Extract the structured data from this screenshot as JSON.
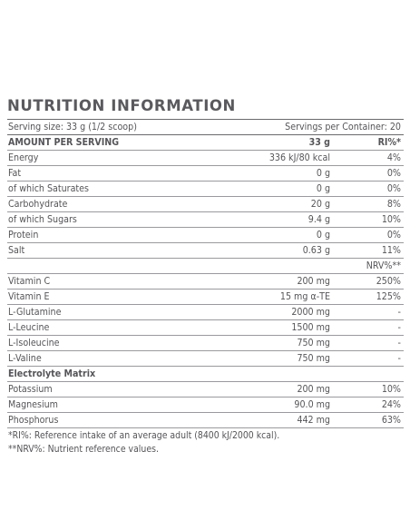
{
  "title": "NUTRITION INFORMATION",
  "serving": {
    "size": "Serving size: 33 g (1/2 scoop)",
    "per_container": "Servings per Container: 20"
  },
  "header": {
    "label": "AMOUNT PER SERVING",
    "amount": "33 g",
    "ri": "RI%*"
  },
  "nutrients": [
    {
      "name": "Energy",
      "amount": "336 kJ/80 kcal",
      "ri": "4%"
    },
    {
      "name": "Fat",
      "amount": "0 g",
      "ri": "0%"
    },
    {
      "name": "of which Saturates",
      "amount": "0 g",
      "ri": "0%"
    },
    {
      "name": "Carbohydrate",
      "amount": "20 g",
      "ri": "8%"
    },
    {
      "name": "of which Sugars",
      "amount": "9.4 g",
      "ri": "10%"
    },
    {
      "name": "Protein",
      "amount": "0 g",
      "ri": "0%"
    },
    {
      "name": "Salt",
      "amount": "0.63 g",
      "ri": "11%"
    }
  ],
  "nrv_header": "NRV%**",
  "vitamins": [
    {
      "name": "Vitamin C",
      "amount": "200 mg",
      "nrv": "250%"
    },
    {
      "name": "Vitamin E",
      "amount": "15 mg α-TE",
      "nrv": "125%"
    },
    {
      "name": "L-Glutamine",
      "amount": "2000 mg",
      "nrv": "-"
    },
    {
      "name": "L-Leucine",
      "amount": "1500 mg",
      "nrv": "-"
    },
    {
      "name": "L-Isoleucine",
      "amount": "750 mg",
      "nrv": "-"
    },
    {
      "name": "L-Valine",
      "amount": "750 mg",
      "nrv": "-"
    }
  ],
  "electrolyte_header": "Electrolyte Matrix",
  "electrolytes": [
    {
      "name": "Potassium",
      "amount": "200 mg",
      "nrv": "10%"
    },
    {
      "name": "Magnesium",
      "amount": "90.0 mg",
      "nrv": "24%"
    },
    {
      "name": "Phosphorus",
      "amount": "442 mg",
      "nrv": "63%"
    }
  ],
  "footnotes": [
    "*RI%: Reference intake of an average adult (8400 kJ/2000 kcal).",
    "**NRV%: Nutrient reference values."
  ]
}
